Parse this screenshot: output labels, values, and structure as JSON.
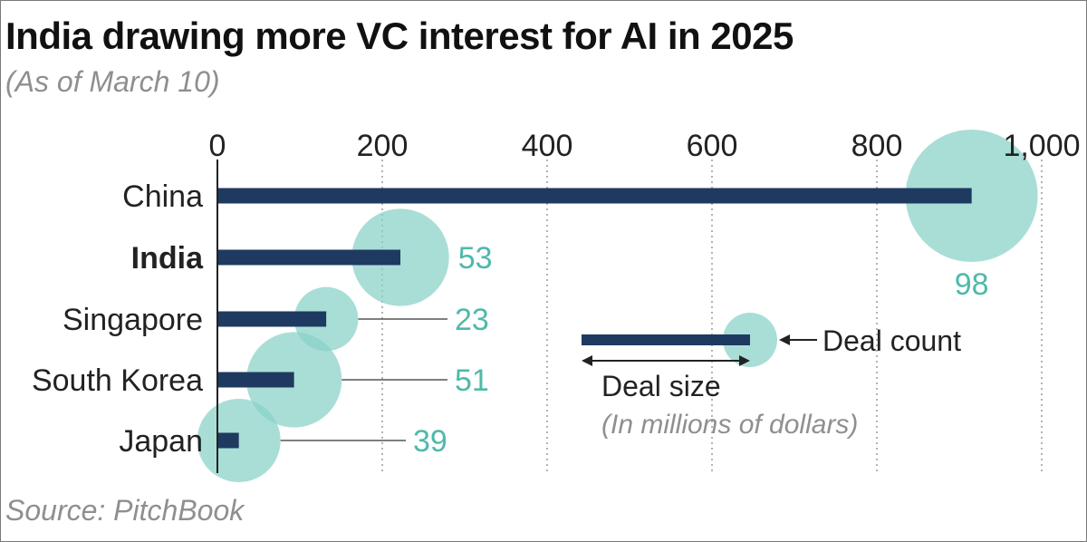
{
  "header": {
    "title": "India drawing more VC interest for AI in 2025",
    "subtitle": "(As of March 10)"
  },
  "footer": {
    "source": "Source: PitchBook"
  },
  "legend": {
    "deal_count_label": "Deal count",
    "deal_size_label": "Deal size",
    "units_label": "(In millions of dollars)"
  },
  "colors": {
    "bar": "#1f3a60",
    "bubble": "#88d1c7",
    "count_text": "#4fb9ab",
    "axis": "#222222",
    "grid": "#9a9a9a",
    "leader": "#555555"
  },
  "chart_data": {
    "type": "bar",
    "orientation": "horizontal",
    "title": "India drawing more VC interest for AI in 2025",
    "subtitle": "(As of March 10)",
    "xlim": [
      0,
      1000
    ],
    "ticks": [
      0,
      200,
      400,
      600,
      800,
      1000
    ],
    "tick_labels": [
      "0",
      "200",
      "400",
      "600",
      "800",
      "1,000"
    ],
    "categories": [
      "China",
      "India",
      "Singapore",
      "South Korea",
      "Japan"
    ],
    "highlighted": "India",
    "series": [
      {
        "name": "Deal size",
        "units": "millions of dollars",
        "values": [
          915,
          222,
          132,
          93,
          26
        ]
      },
      {
        "name": "Deal count",
        "values": [
          98,
          53,
          23,
          51,
          39
        ]
      }
    ],
    "deal_count_labels": [
      "98",
      "53",
      "23",
      "51",
      "39"
    ]
  }
}
